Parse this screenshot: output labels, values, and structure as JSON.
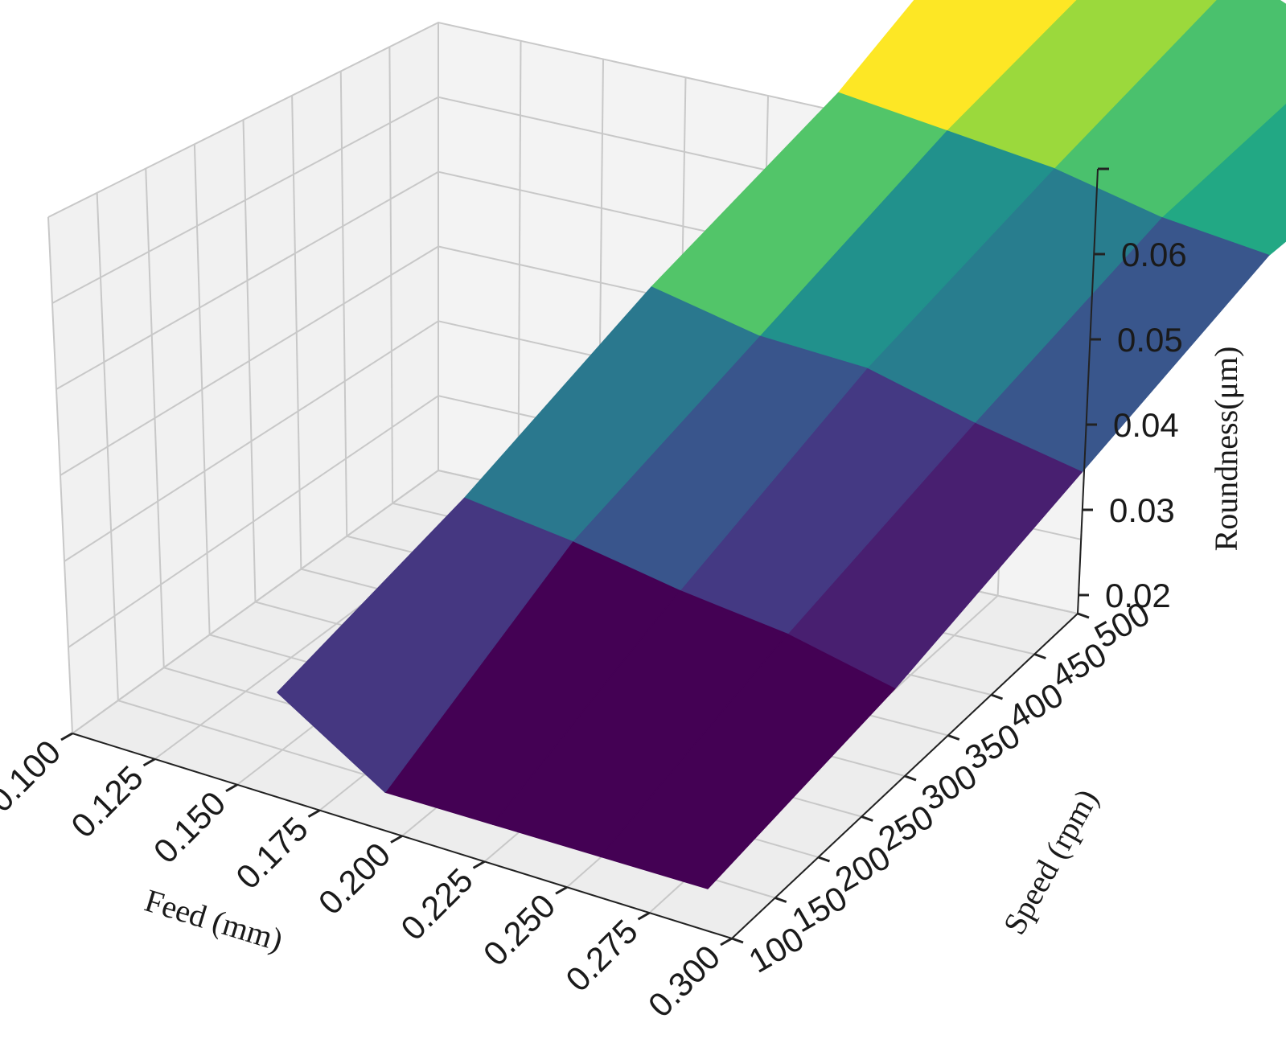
{
  "chart_data": {
    "type": "surface3d",
    "title": "",
    "xlabel": "Feed (mm)",
    "ylabel": "Speed (rpm)",
    "zlabel": "Roundness(μm)",
    "x_ticks": [
      "0.100",
      "0.125",
      "0.150",
      "0.175",
      "0.200",
      "0.225",
      "0.250",
      "0.275",
      "0.300"
    ],
    "y_ticks": [
      "100",
      "150",
      "200",
      "250",
      "300",
      "350",
      "400",
      "450",
      "500"
    ],
    "z_ticks": [
      "0.02",
      "0.03",
      "0.04",
      "0.05",
      "0.06"
    ],
    "xlim": [
      0.1,
      0.3
    ],
    "ylim": [
      100,
      500
    ],
    "zlim": [
      0.02,
      0.07
    ],
    "grid": true,
    "colormap": "viridis",
    "feed_values": [
      0.1,
      0.15,
      0.2,
      0.25,
      0.3
    ],
    "speed_values": [
      100,
      200,
      300,
      400,
      500
    ],
    "roundness": [
      [
        0.028,
        0.016,
        0.016,
        0.016,
        0.016
      ],
      [
        0.035,
        0.033,
        0.03,
        0.028,
        0.024
      ],
      [
        0.045,
        0.042,
        0.042,
        0.038,
        0.035
      ],
      [
        0.052,
        0.051,
        0.05,
        0.047,
        0.046
      ],
      [
        0.065,
        0.057,
        0.057,
        0.05,
        0.046
      ]
    ],
    "face_colors": [
      [
        "#453781",
        "#440154",
        "#440154",
        "#440154"
      ],
      [
        "#2a788e",
        "#39558c",
        "#443983",
        "#481f70"
      ],
      [
        "#52c569",
        "#21918c",
        "#287d8e",
        "#39568c"
      ],
      [
        "#fde725",
        "#9bd93c",
        "#4ac16d",
        "#22a884"
      ]
    ]
  }
}
